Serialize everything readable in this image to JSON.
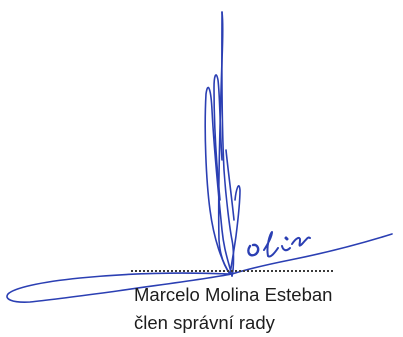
{
  "signature_block": {
    "signer_name": "Marcelo Molina Esteban",
    "signer_role": "člen správní rady",
    "ink_color": "#2b3fb3"
  }
}
